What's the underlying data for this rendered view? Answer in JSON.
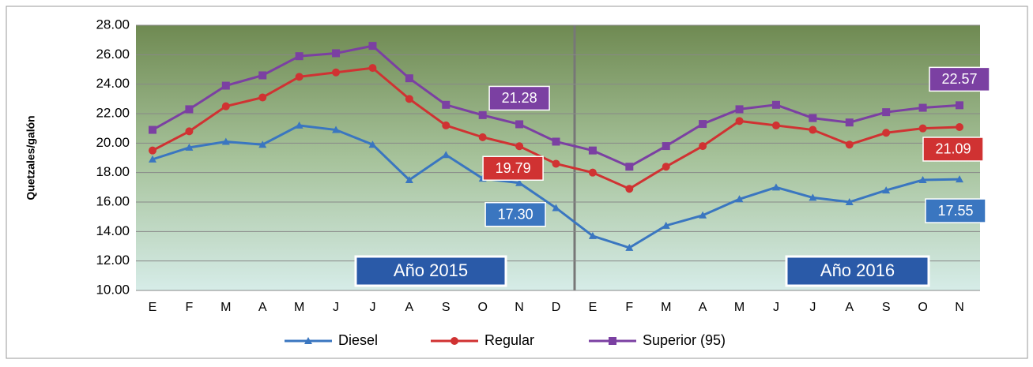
{
  "chart_data": {
    "type": "line",
    "y_label": "Quetzales/galón",
    "categories": [
      "E",
      "F",
      "M",
      "A",
      "M",
      "J",
      "J",
      "A",
      "S",
      "O",
      "N",
      "D",
      "E",
      "F",
      "M",
      "A",
      "M",
      "J",
      "J",
      "A",
      "S",
      "O",
      "N"
    ],
    "series": [
      {
        "name": "Diesel",
        "color": "#3a76c0",
        "marker": "triangle",
        "values": [
          18.9,
          19.7,
          20.1,
          19.9,
          21.2,
          20.9,
          19.9,
          17.5,
          19.2,
          17.6,
          17.3,
          15.6,
          13.7,
          12.9,
          14.4,
          15.1,
          16.2,
          17.0,
          16.3,
          16.0,
          16.8,
          17.5,
          17.55
        ],
        "value_labels": [
          null,
          null,
          null,
          null,
          null,
          null,
          null,
          null,
          null,
          null,
          "17.30",
          null,
          null,
          null,
          null,
          null,
          null,
          null,
          null,
          null,
          null,
          null,
          "17.55"
        ]
      },
      {
        "name": "Regular",
        "color": "#d03232",
        "marker": "circle",
        "values": [
          19.5,
          20.8,
          22.5,
          23.1,
          24.5,
          24.8,
          25.1,
          23.0,
          21.2,
          20.4,
          19.79,
          18.6,
          18.0,
          16.9,
          18.4,
          19.8,
          21.5,
          21.2,
          20.9,
          19.9,
          20.7,
          21.0,
          21.09
        ],
        "value_labels": [
          null,
          null,
          null,
          null,
          null,
          null,
          null,
          null,
          null,
          null,
          "19.79",
          null,
          null,
          null,
          null,
          null,
          null,
          null,
          null,
          null,
          null,
          null,
          "21.09"
        ]
      },
      {
        "name": "Superior (95)",
        "color": "#7b40a2",
        "marker": "square",
        "values": [
          20.9,
          22.3,
          23.9,
          24.6,
          25.9,
          26.1,
          26.6,
          24.4,
          22.6,
          21.9,
          21.28,
          20.1,
          19.5,
          18.4,
          19.8,
          21.3,
          22.3,
          22.6,
          21.7,
          21.4,
          22.1,
          22.4,
          22.57
        ],
        "value_labels": [
          null,
          null,
          null,
          null,
          null,
          null,
          null,
          null,
          null,
          null,
          "21.28",
          null,
          null,
          null,
          null,
          null,
          null,
          null,
          null,
          null,
          null,
          null,
          "22.57"
        ]
      }
    ],
    "annotations": [
      "Año 2015",
      "Año 2016"
    ],
    "ylim": [
      10,
      28
    ],
    "yticks": [
      {
        "value": 10,
        "label": "10.00"
      },
      {
        "value": 12,
        "label": "12.00"
      },
      {
        "value": 14,
        "label": "14.00"
      },
      {
        "value": 16,
        "label": "16.00"
      },
      {
        "value": 18,
        "label": "18.00"
      },
      {
        "value": 20,
        "label": "20.00"
      },
      {
        "value": 22,
        "label": "22.00"
      },
      {
        "value": 24,
        "label": "24.00"
      },
      {
        "value": 26,
        "label": "26.00"
      },
      {
        "value": 28,
        "label": "28.00"
      }
    ],
    "grid": true,
    "legend": "bottom"
  }
}
